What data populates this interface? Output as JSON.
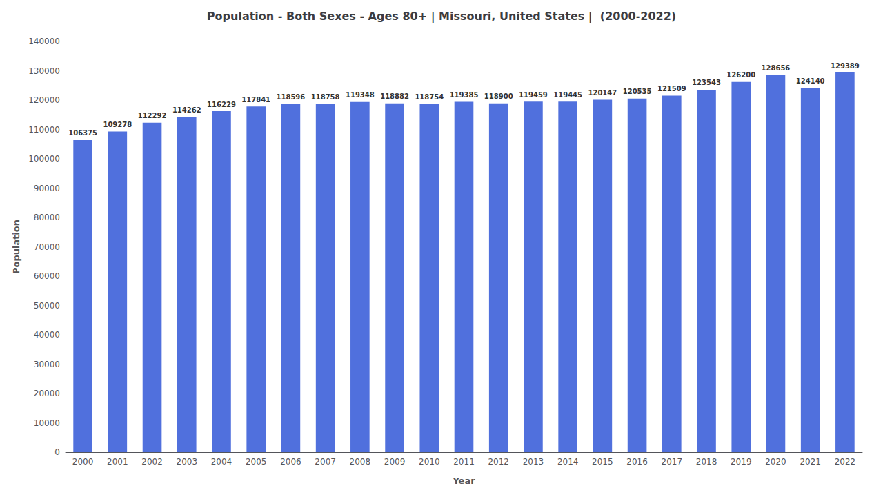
{
  "chart_data": {
    "type": "bar",
    "title": "Population - Both Sexes - Ages 80+ | Missouri, United States |  (2000-2022)",
    "xlabel": "Year",
    "ylabel": "Population",
    "categories": [
      "2000",
      "2001",
      "2002",
      "2003",
      "2004",
      "2005",
      "2006",
      "2007",
      "2008",
      "2009",
      "2010",
      "2011",
      "2012",
      "2013",
      "2014",
      "2015",
      "2016",
      "2017",
      "2018",
      "2019",
      "2020",
      "2021",
      "2022"
    ],
    "values": [
      106375,
      109278,
      112292,
      114262,
      116229,
      117841,
      118596,
      118758,
      119348,
      118882,
      118754,
      119385,
      118900,
      119459,
      119445,
      120147,
      120535,
      121509,
      123543,
      126200,
      128656,
      124140,
      129389
    ],
    "ylim": [
      0,
      140000
    ],
    "yticks": [
      0,
      10000,
      20000,
      30000,
      40000,
      50000,
      60000,
      70000,
      80000,
      90000,
      100000,
      110000,
      120000,
      130000,
      140000
    ],
    "grid": false,
    "data_labels": true
  }
}
